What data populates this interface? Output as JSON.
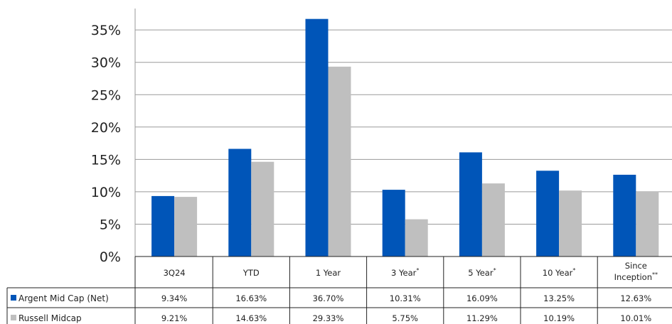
{
  "chart_data": {
    "type": "bar",
    "categories": [
      {
        "label": "3Q24",
        "mark": ""
      },
      {
        "label": "YTD",
        "mark": ""
      },
      {
        "label": "1 Year",
        "mark": ""
      },
      {
        "label": "3 Year",
        "mark": "*"
      },
      {
        "label": "5 Year",
        "mark": "*"
      },
      {
        "label": "10 Year",
        "mark": "*"
      },
      {
        "label": "Since Inception",
        "label_lines": [
          "Since",
          "Inception"
        ],
        "mark": "**"
      }
    ],
    "series": [
      {
        "name": "Argent Mid Cap (Net)",
        "color": "#0055b8",
        "values": [
          9.34,
          16.63,
          36.7,
          10.31,
          16.09,
          13.25,
          12.63
        ],
        "labels": [
          "9.34%",
          "16.63%",
          "36.70%",
          "10.31%",
          "16.09%",
          "13.25%",
          "12.63%"
        ]
      },
      {
        "name": "Russell Midcap",
        "color": "#bfbfbf",
        "values": [
          9.21,
          14.63,
          29.33,
          5.75,
          11.29,
          10.19,
          10.01
        ],
        "labels": [
          "9.21%",
          "14.63%",
          "29.33%",
          "5.75%",
          "11.29%",
          "10.19%",
          "10.01%"
        ]
      }
    ],
    "y_ticks": [
      "0%",
      "5%",
      "10%",
      "15%",
      "20%",
      "25%",
      "30%",
      "35%"
    ],
    "y_tick_values": [
      0,
      5,
      10,
      15,
      20,
      25,
      30,
      35
    ],
    "ylim": [
      0,
      38
    ],
    "grid": true,
    "legend": "data-table-left"
  }
}
